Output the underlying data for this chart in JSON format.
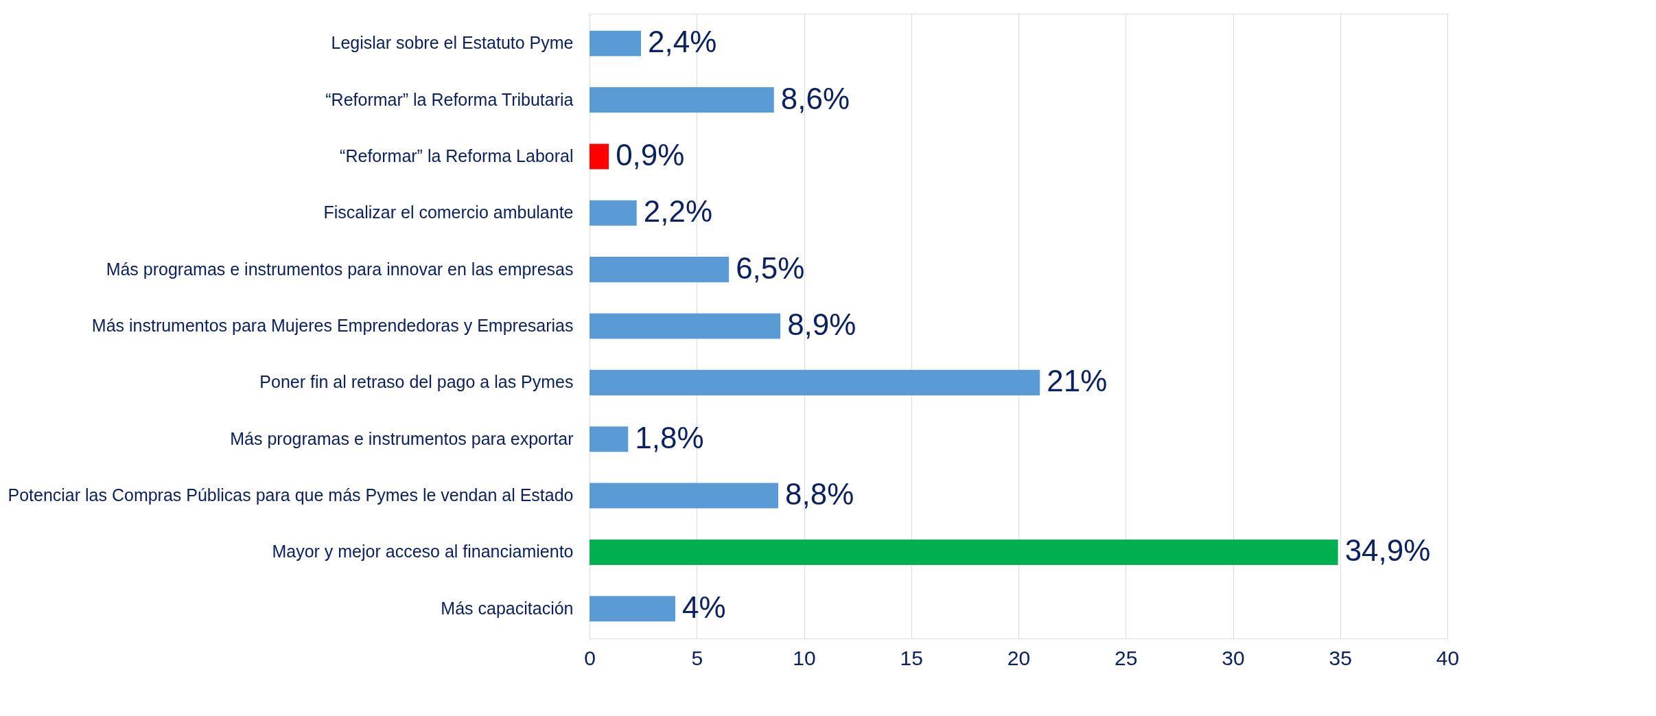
{
  "chart_data": {
    "type": "bar",
    "orientation": "horizontal",
    "categories": [
      "Legislar sobre el Estatuto Pyme",
      "“Reformar” la Reforma Tributaria",
      "“Reformar” la Reforma Laboral",
      "Fiscalizar el comercio ambulante",
      "Más programas e instrumentos para innovar en las empresas",
      "Más instrumentos para Mujeres Emprendedoras y Empresarias",
      "Poner fin al retraso del pago a las Pymes",
      "Más programas e instrumentos para exportar",
      "Potenciar las Compras Públicas para que más Pymes le vendan al Estado",
      "Mayor y mejor acceso al financiamiento",
      "Más capacitación"
    ],
    "values": [
      2.4,
      8.6,
      0.9,
      2.2,
      6.5,
      8.9,
      21,
      1.8,
      8.8,
      34.9,
      4
    ],
    "value_labels": [
      "2,4%",
      "8,6%",
      "0,9%",
      "2,2%",
      "6,5%",
      "8,9%",
      "21%",
      "1,8%",
      "8,8%",
      "34,9%",
      "4%"
    ],
    "colors": [
      "#5b9bd5",
      "#5b9bd5",
      "#ff0000",
      "#5b9bd5",
      "#5b9bd5",
      "#5b9bd5",
      "#5b9bd5",
      "#5b9bd5",
      "#5b9bd5",
      "#00b050",
      "#5b9bd5"
    ],
    "xlim": [
      0,
      40
    ],
    "xticks": [
      0,
      5,
      10,
      15,
      20,
      25,
      30,
      35,
      40
    ],
    "grid": "x"
  }
}
